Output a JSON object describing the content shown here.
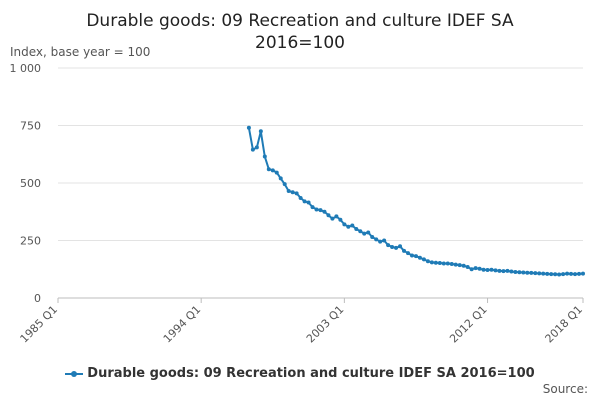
{
  "chart_data": {
    "type": "line",
    "title": "Durable goods: 09 Recreation and culture IDEF SA 2016=100",
    "ylabel": "Index, base year = 100",
    "xlabel": "",
    "ylim": [
      0,
      1000
    ],
    "yticks": [
      0,
      250,
      500,
      750,
      1000
    ],
    "ytick_labels": [
      "0",
      "250",
      "500",
      "750",
      "1 000"
    ],
    "xlim": [
      1985.0,
      2018.0
    ],
    "xticks": [
      1985.0,
      1994.0,
      2003.0,
      2012.0,
      2018.0
    ],
    "xtick_labels": [
      "1985 Q1",
      "1994 Q1",
      "2003 Q1",
      "2012 Q1",
      "2018 Q1"
    ],
    "grid": true,
    "legend_position": "bottom",
    "series": [
      {
        "name": "Durable goods: 09 Recreation and culture IDEF SA 2016=100",
        "color": "#1f7bb6",
        "x": [
          1997.0,
          1997.25,
          1997.5,
          1997.75,
          1998.0,
          1998.25,
          1998.5,
          1998.75,
          1999.0,
          1999.25,
          1999.5,
          1999.75,
          2000.0,
          2000.25,
          2000.5,
          2000.75,
          2001.0,
          2001.25,
          2001.5,
          2001.75,
          2002.0,
          2002.25,
          2002.5,
          2002.75,
          2003.0,
          2003.25,
          2003.5,
          2003.75,
          2004.0,
          2004.25,
          2004.5,
          2004.75,
          2005.0,
          2005.25,
          2005.5,
          2005.75,
          2006.0,
          2006.25,
          2006.5,
          2006.75,
          2007.0,
          2007.25,
          2007.5,
          2007.75,
          2008.0,
          2008.25,
          2008.5,
          2008.75,
          2009.0,
          2009.25,
          2009.5,
          2009.75,
          2010.0,
          2010.25,
          2010.5,
          2010.75,
          2011.0,
          2011.25,
          2011.5,
          2011.75,
          2012.0,
          2012.25,
          2012.5,
          2012.75,
          2013.0,
          2013.25,
          2013.5,
          2013.75,
          2014.0,
          2014.25,
          2014.5,
          2014.75,
          2015.0,
          2015.25,
          2015.5,
          2015.75,
          2016.0,
          2016.25,
          2016.5,
          2016.75,
          2017.0,
          2017.25,
          2017.5,
          2017.75,
          2018.0
        ],
        "values": [
          740,
          645,
          655,
          725,
          615,
          560,
          555,
          545,
          520,
          495,
          465,
          460,
          455,
          435,
          420,
          415,
          395,
          385,
          382,
          375,
          360,
          345,
          355,
          340,
          320,
          310,
          315,
          300,
          290,
          280,
          285,
          265,
          255,
          245,
          250,
          230,
          222,
          218,
          225,
          205,
          195,
          185,
          182,
          175,
          168,
          160,
          155,
          153,
          152,
          150,
          150,
          148,
          145,
          143,
          140,
          135,
          125,
          130,
          127,
          123,
          122,
          123,
          120,
          118,
          117,
          118,
          115,
          113,
          112,
          111,
          110,
          109,
          108,
          107,
          106,
          105,
          104,
          103,
          102,
          104,
          106,
          105,
          104,
          105,
          106
        ]
      }
    ]
  },
  "source_label": "Source:"
}
